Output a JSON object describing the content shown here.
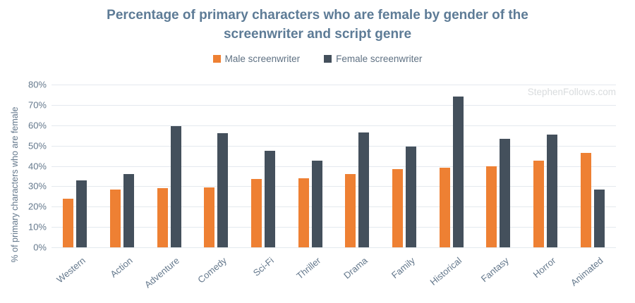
{
  "watermark": "StephenFollows.com",
  "colors": {
    "male_bar": "#ee8033",
    "female_bar": "#44505c",
    "title_text": "#5d7b96",
    "axis_text": "#64788c",
    "gridline": "#e4e9ee",
    "watermark_text": "#d9dcde"
  },
  "chart_data": {
    "type": "bar",
    "title": "Percentage of primary characters who are female by gender of the screenwriter and script genre",
    "xlabel": "",
    "ylabel": "% of primary characters who are female",
    "ylim": [
      0,
      80
    ],
    "ytick_step": 10,
    "ytick_suffix": "%",
    "grid": true,
    "legend_position": "top",
    "categories": [
      "Western",
      "Action",
      "Adventure",
      "Comedy",
      "Sci-Fi",
      "Thriller",
      "Drama",
      "Family",
      "Historical",
      "Fantasy",
      "Horror",
      "Animated"
    ],
    "series": [
      {
        "name": "Male screenwriter",
        "color": "#ee8033",
        "values": [
          24,
          28.5,
          29,
          29.5,
          33.5,
          34,
          36,
          38.5,
          39,
          40,
          42.5,
          46.5
        ]
      },
      {
        "name": "Female screenwriter",
        "color": "#44505c",
        "values": [
          33,
          36,
          59.5,
          56,
          47.5,
          42.5,
          56.5,
          49.5,
          74,
          53.5,
          55.5,
          28.5
        ]
      }
    ]
  }
}
